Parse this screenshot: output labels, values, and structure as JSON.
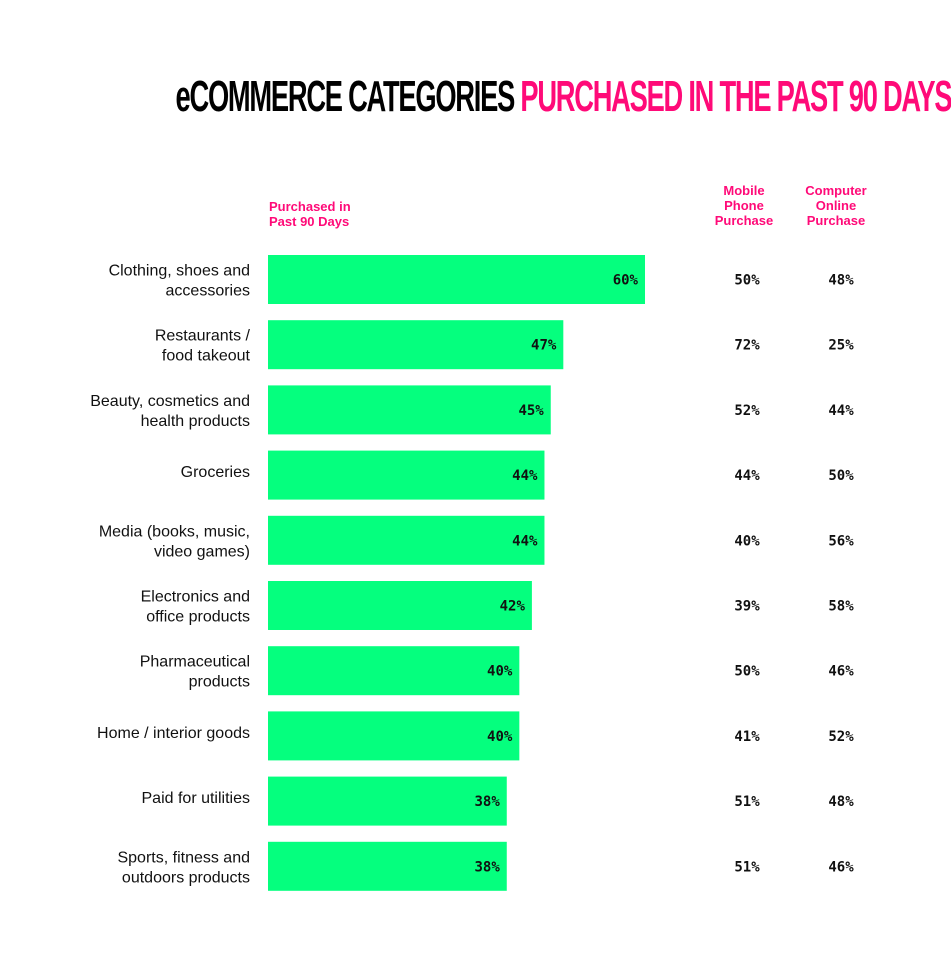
{
  "title": {
    "part1": "eCOMMERCE CATEGORIES",
    "part2": "PURCHASED IN THE PAST 90 DAYS"
  },
  "colors": {
    "bar": "#05ff7e",
    "accent": "#ff0a78",
    "text": "#111111"
  },
  "chart_data": {
    "type": "bar",
    "orientation": "horizontal",
    "title": "eCOMMERCE CATEGORIES PURCHASED IN THE PAST 90 DAYS",
    "xlabel": "",
    "ylabel": "",
    "xlim": [
      0,
      60
    ],
    "grid": false,
    "series_header": "Purchased in Past 90 Days",
    "series_header_lines": [
      "Purchased in",
      "Past 90 Days"
    ],
    "categories": [
      [
        "Clothing, shoes and",
        "accessories"
      ],
      [
        "Restaurants /",
        "food takeout"
      ],
      [
        "Beauty, cosmetics and",
        "health products"
      ],
      [
        "Groceries"
      ],
      [
        "Media (books, music,",
        "video games)"
      ],
      [
        "Electronics and",
        "office products"
      ],
      [
        "Pharmaceutical",
        "products"
      ],
      [
        "Home / interior goods"
      ],
      [
        "Paid for utilities"
      ],
      [
        "Sports, fitness and",
        "outdoors products"
      ]
    ],
    "values": [
      60,
      47,
      45,
      44,
      44,
      42,
      40,
      40,
      38,
      38
    ],
    "value_labels": [
      "60%",
      "47%",
      "45%",
      "44%",
      "44%",
      "42%",
      "40%",
      "40%",
      "38%",
      "38%"
    ],
    "table_columns": [
      {
        "name": "Mobile Phone Purchase",
        "header_lines": [
          "Mobile",
          "Phone",
          "Purchase"
        ],
        "values": [
          50,
          72,
          52,
          44,
          40,
          39,
          50,
          41,
          51,
          51
        ],
        "labels": [
          "50%",
          "72%",
          "52%",
          "44%",
          "40%",
          "39%",
          "50%",
          "41%",
          "51%",
          "51%"
        ]
      },
      {
        "name": "Computer Online Purchase",
        "header_lines": [
          "Computer",
          "Online",
          "Purchase"
        ],
        "values": [
          48,
          25,
          44,
          50,
          56,
          58,
          46,
          52,
          48,
          46
        ],
        "labels": [
          "48%",
          "25%",
          "44%",
          "50%",
          "56%",
          "58%",
          "46%",
          "52%",
          "48%",
          "46%"
        ]
      }
    ]
  }
}
